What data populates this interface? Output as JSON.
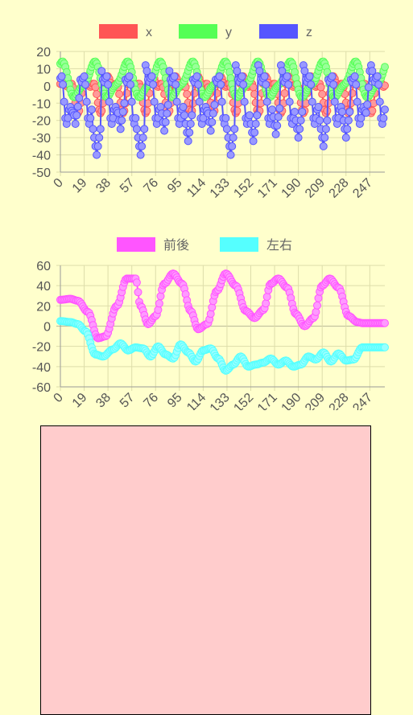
{
  "charts": [
    {
      "id": "accel",
      "type": "line",
      "ylim": [
        -50,
        20
      ],
      "yticks": [
        20,
        10,
        0,
        -10,
        -20,
        -30,
        -40,
        -50
      ],
      "xticks": [
        0,
        19,
        38,
        57,
        76,
        95,
        114,
        133,
        152,
        171,
        190,
        209,
        228,
        247
      ],
      "x_count": 260,
      "series": [
        {
          "name": "x",
          "color": "#ff5555",
          "fill": "#ff9999",
          "shape": {
            "offset": -3,
            "amp": 8,
            "period": 18,
            "phase": 0.0,
            "amp2": 5,
            "period2": 9,
            "phase2": 1.0
          }
        },
        {
          "name": "y",
          "color": "#55ff55",
          "fill": "#99ff99",
          "shape": {
            "offset": 3,
            "amp": 9,
            "period": 26,
            "phase": 1.5,
            "amp2": 3,
            "period2": 13,
            "phase2": 0.3
          }
        },
        {
          "name": "z",
          "color": "#5555ff",
          "fill": "#9999ff",
          "shape": {
            "offset": -5,
            "amp": 14,
            "period": 18,
            "phase": 2.4,
            "amp2": 6,
            "period2": 6,
            "phase2": 0.0,
            "dips": [
              [
                12,
                -22
              ],
              [
                29,
                -40
              ],
              [
                48,
                -25
              ],
              [
                64,
                -40
              ],
              [
                83,
                -26
              ],
              [
                102,
                -32
              ],
              [
                120,
                -26
              ],
              [
                136,
                -40
              ],
              [
                154,
                -32
              ],
              [
                172,
                -28
              ],
              [
                190,
                -30
              ],
              [
                210,
                -35
              ],
              [
                228,
                -30
              ]
            ]
          }
        }
      ]
    },
    {
      "id": "tilt",
      "type": "line",
      "ylim": [
        -60,
        60
      ],
      "yticks": [
        60,
        40,
        20,
        0,
        -20,
        -40,
        -60
      ],
      "xticks": [
        0,
        19,
        38,
        57,
        76,
        95,
        114,
        133,
        152,
        171,
        190,
        209,
        228,
        247
      ],
      "x_count": 260,
      "series": [
        {
          "name": "前後",
          "color": "#ff55ff",
          "fill": "#ff99ff",
          "keypoints": [
            [
              0,
              26
            ],
            [
              8,
              27
            ],
            [
              14,
              25
            ],
            [
              22,
              14
            ],
            [
              30,
              -12
            ],
            [
              36,
              -10
            ],
            [
              45,
              20
            ],
            [
              53,
              47
            ],
            [
              60,
              47
            ],
            [
              64,
              20
            ],
            [
              70,
              2
            ],
            [
              76,
              10
            ],
            [
              83,
              42
            ],
            [
              90,
              52
            ],
            [
              97,
              42
            ],
            [
              104,
              15
            ],
            [
              110,
              -3
            ],
            [
              117,
              2
            ],
            [
              125,
              35
            ],
            [
              132,
              52
            ],
            [
              140,
              40
            ],
            [
              148,
              15
            ],
            [
              155,
              8
            ],
            [
              162,
              16
            ],
            [
              168,
              42
            ],
            [
              174,
              47
            ],
            [
              181,
              38
            ],
            [
              188,
              12
            ],
            [
              195,
              0
            ],
            [
              202,
              8
            ],
            [
              209,
              40
            ],
            [
              215,
              47
            ],
            [
              222,
              38
            ],
            [
              230,
              10
            ],
            [
              237,
              4
            ],
            [
              241,
              3
            ]
          ]
        },
        {
          "name": "左右",
          "color": "#55ffff",
          "fill": "#99ffff",
          "keypoints": [
            [
              0,
              5
            ],
            [
              8,
              4
            ],
            [
              14,
              2
            ],
            [
              20,
              -5
            ],
            [
              28,
              -28
            ],
            [
              34,
              -30
            ],
            [
              42,
              -23
            ],
            [
              48,
              -17
            ],
            [
              54,
              -24
            ],
            [
              60,
              -21
            ],
            [
              66,
              -22
            ],
            [
              72,
              -30
            ],
            [
              78,
              -20
            ],
            [
              84,
              -28
            ],
            [
              90,
              -32
            ],
            [
              96,
              -18
            ],
            [
              102,
              -26
            ],
            [
              108,
              -35
            ],
            [
              114,
              -24
            ],
            [
              120,
              -22
            ],
            [
              126,
              -32
            ],
            [
              132,
              -44
            ],
            [
              138,
              -38
            ],
            [
              144,
              -30
            ],
            [
              150,
              -40
            ],
            [
              156,
              -38
            ],
            [
              162,
              -36
            ],
            [
              168,
              -32
            ],
            [
              174,
              -38
            ],
            [
              180,
              -34
            ],
            [
              186,
              -40
            ],
            [
              192,
              -38
            ],
            [
              198,
              -30
            ],
            [
              204,
              -33
            ],
            [
              210,
              -26
            ],
            [
              216,
              -35
            ],
            [
              222,
              -27
            ],
            [
              228,
              -34
            ],
            [
              234,
              -33
            ],
            [
              241,
              -21
            ]
          ]
        }
      ]
    }
  ],
  "canvas": {
    "fill": "#ffcccc",
    "border": "#000000"
  }
}
